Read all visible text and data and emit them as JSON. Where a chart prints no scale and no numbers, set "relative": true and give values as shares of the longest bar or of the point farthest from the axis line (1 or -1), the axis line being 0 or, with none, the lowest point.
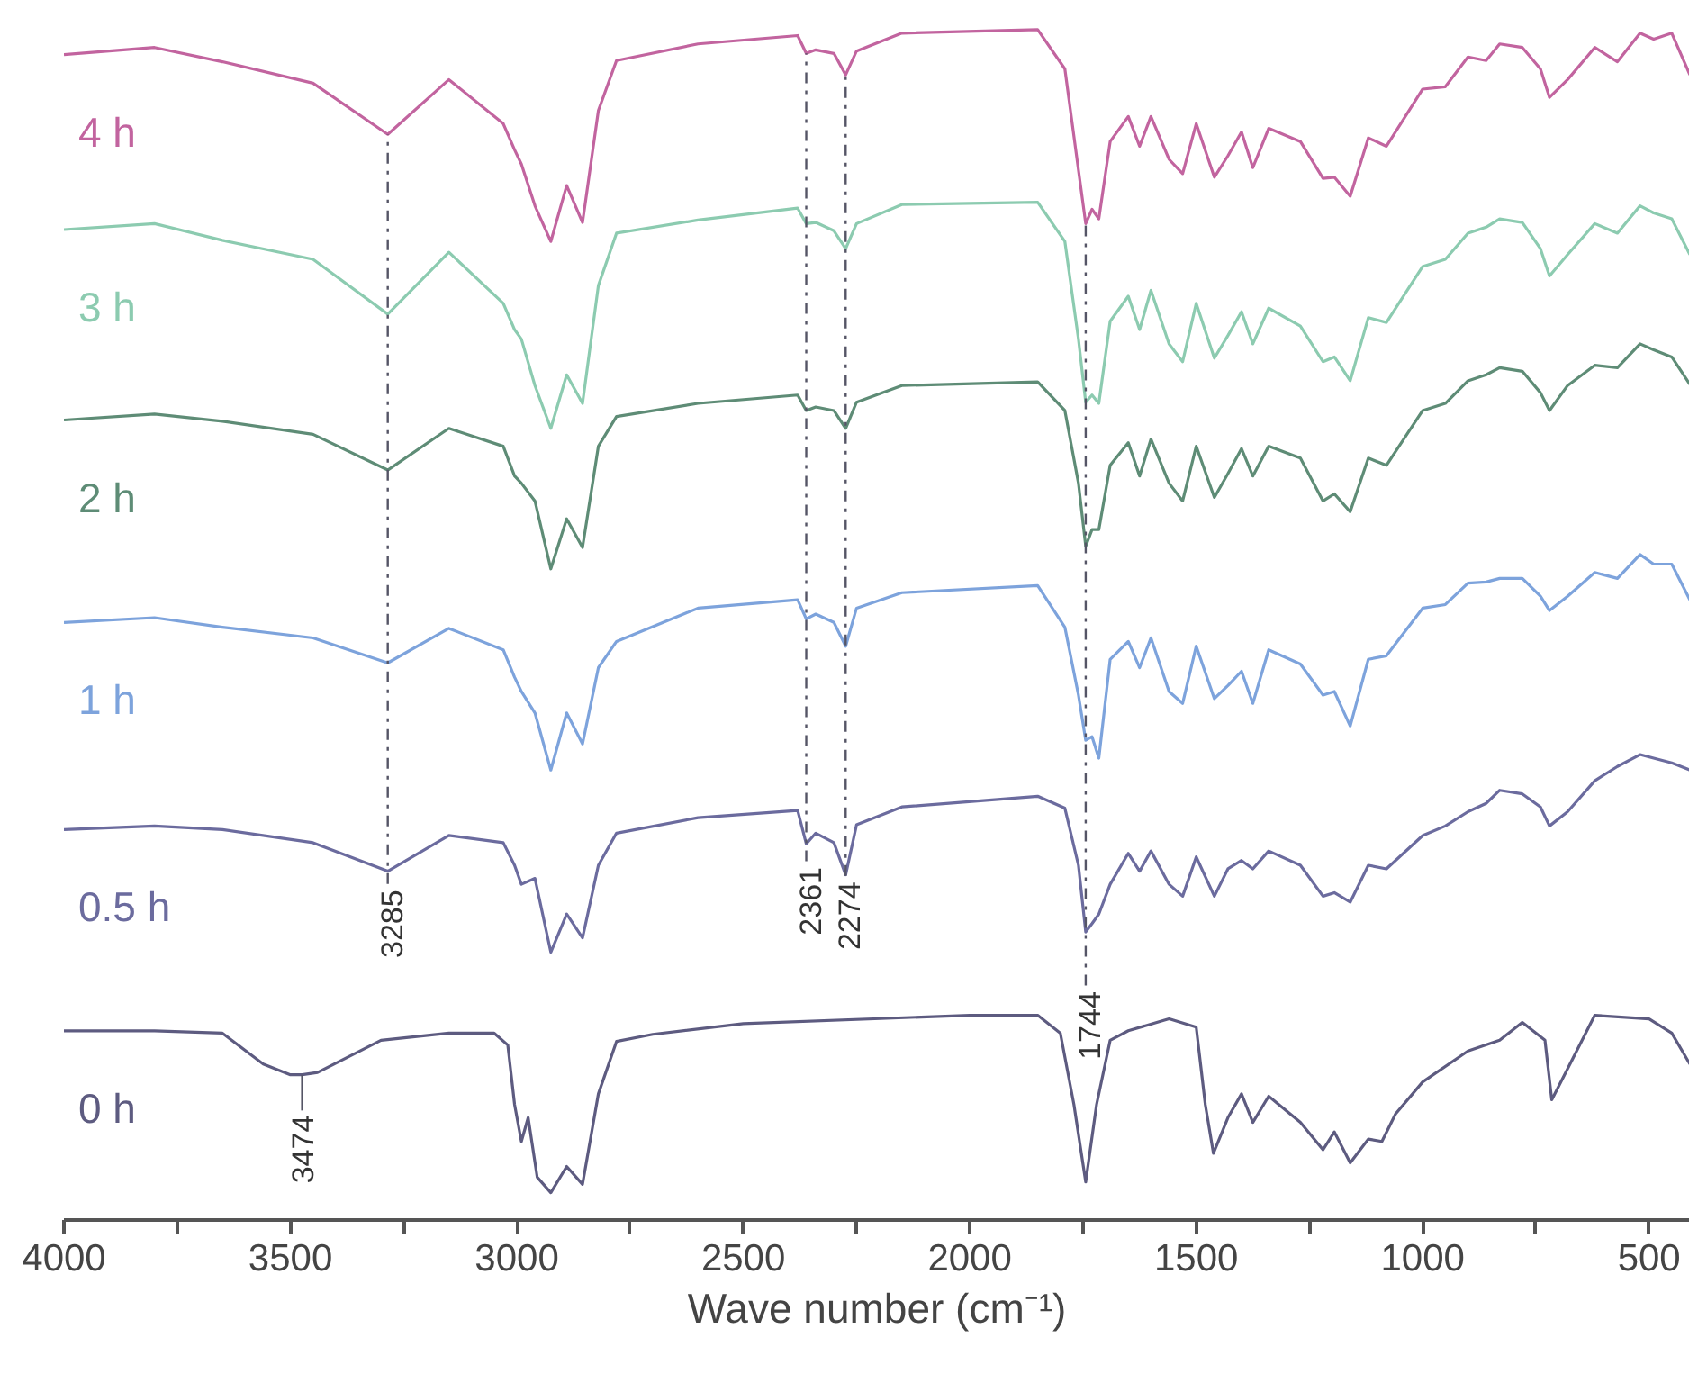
{
  "chart_data": {
    "type": "line",
    "relative": true,
    "xlabel": "Wave number (cm⁻¹)",
    "grid": false,
    "legend": false,
    "marker": "none",
    "line_style": "solid",
    "xlim": [
      4000,
      410
    ],
    "xticks": [
      4000,
      {
        "value": 3750,
        "label": null
      },
      3500,
      {
        "value": 3250,
        "label": null
      },
      3000,
      {
        "value": 2750,
        "label": null
      },
      2500,
      {
        "value": 2250,
        "label": null
      },
      2000,
      {
        "value": 1750,
        "label": null
      },
      1500,
      {
        "value": 1250,
        "label": null
      },
      1000,
      {
        "value": 750,
        "label": null
      },
      500
    ],
    "x": [
      4000,
      3800,
      3650,
      3450,
      3285,
      3150,
      3030,
      3005,
      2990,
      2960,
      2925,
      2890,
      2855,
      2820,
      2780,
      2600,
      2380,
      2361,
      2340,
      2300,
      2274,
      2250,
      2150,
      1850,
      1790,
      1760,
      1744,
      1730,
      1715,
      1690,
      1650,
      1625,
      1600,
      1560,
      1530,
      1500,
      1460,
      1430,
      1400,
      1375,
      1340,
      1270,
      1220,
      1195,
      1160,
      1120,
      1080,
      1000,
      950,
      900,
      860,
      830,
      780,
      740,
      720,
      680,
      620,
      570,
      520,
      490,
      450,
      410
    ],
    "series": [
      {
        "name": "0 h",
        "color": "#5d5b80",
        "x": [
          4000,
          3800,
          3650,
          3560,
          3500,
          3474,
          3440,
          3300,
          3150,
          3050,
          3020,
          3005,
          2990,
          2975,
          2955,
          2925,
          2890,
          2855,
          2820,
          2780,
          2700,
          2500,
          2000,
          1850,
          1800,
          1770,
          1744,
          1720,
          1690,
          1650,
          1560,
          1500,
          1480,
          1462,
          1430,
          1400,
          1375,
          1340,
          1270,
          1220,
          1195,
          1160,
          1120,
          1090,
          1060,
          1000,
          900,
          830,
          780,
          730,
          715,
          680,
          620,
          500,
          450,
          410
        ],
        "values": [
          0.159,
          0.159,
          0.157,
          0.131,
          0.122,
          0.122,
          0.124,
          0.151,
          0.157,
          0.157,
          0.147,
          0.097,
          0.066,
          0.086,
          0.036,
          0.023,
          0.045,
          0.03,
          0.106,
          0.15,
          0.156,
          0.165,
          0.172,
          0.172,
          0.157,
          0.097,
          0.032,
          0.097,
          0.151,
          0.159,
          0.169,
          0.162,
          0.097,
          0.056,
          0.086,
          0.106,
          0.082,
          0.104,
          0.082,
          0.059,
          0.074,
          0.048,
          0.068,
          0.066,
          0.089,
          0.116,
          0.142,
          0.151,
          0.166,
          0.151,
          0.101,
          0.127,
          0.172,
          0.169,
          0.157,
          0.131
        ]
      },
      {
        "name": "0.5 h",
        "color": "#6b6b9e",
        "values": [
          0.328,
          0.331,
          0.328,
          0.317,
          0.293,
          0.323,
          0.317,
          0.298,
          0.282,
          0.287,
          0.225,
          0.257,
          0.237,
          0.298,
          0.325,
          0.338,
          0.344,
          0.316,
          0.325,
          0.317,
          0.29,
          0.332,
          0.347,
          0.356,
          0.346,
          0.298,
          0.242,
          0.249,
          0.257,
          0.282,
          0.308,
          0.293,
          0.31,
          0.282,
          0.272,
          0.305,
          0.272,
          0.295,
          0.302,
          0.295,
          0.31,
          0.298,
          0.272,
          0.275,
          0.267,
          0.298,
          0.295,
          0.323,
          0.331,
          0.343,
          0.35,
          0.361,
          0.358,
          0.347,
          0.331,
          0.343,
          0.369,
          0.381,
          0.391,
          0.388,
          0.384,
          0.378
        ]
      },
      {
        "name": "1 h",
        "color": "#7da3dc",
        "values": [
          0.502,
          0.506,
          0.498,
          0.489,
          0.468,
          0.497,
          0.479,
          0.456,
          0.444,
          0.426,
          0.378,
          0.426,
          0.4,
          0.464,
          0.486,
          0.514,
          0.521,
          0.505,
          0.509,
          0.502,
          0.482,
          0.514,
          0.527,
          0.533,
          0.498,
          0.441,
          0.403,
          0.406,
          0.388,
          0.471,
          0.486,
          0.464,
          0.489,
          0.444,
          0.434,
          0.482,
          0.438,
          0.449,
          0.461,
          0.434,
          0.479,
          0.467,
          0.441,
          0.444,
          0.415,
          0.471,
          0.474,
          0.514,
          0.517,
          0.535,
          0.536,
          0.539,
          0.539,
          0.524,
          0.512,
          0.524,
          0.544,
          0.539,
          0.559,
          0.551,
          0.551,
          0.521
        ]
      },
      {
        "name": "2 h",
        "color": "#5e8c76",
        "values": [
          0.672,
          0.677,
          0.671,
          0.66,
          0.63,
          0.665,
          0.65,
          0.625,
          0.619,
          0.604,
          0.547,
          0.589,
          0.565,
          0.65,
          0.675,
          0.686,
          0.693,
          0.68,
          0.683,
          0.68,
          0.665,
          0.687,
          0.701,
          0.704,
          0.68,
          0.619,
          0.566,
          0.58,
          0.58,
          0.634,
          0.653,
          0.625,
          0.656,
          0.619,
          0.604,
          0.65,
          0.607,
          0.627,
          0.648,
          0.625,
          0.65,
          0.64,
          0.604,
          0.61,
          0.595,
          0.64,
          0.634,
          0.68,
          0.686,
          0.705,
          0.71,
          0.716,
          0.713,
          0.695,
          0.68,
          0.701,
          0.718,
          0.716,
          0.736,
          0.731,
          0.725,
          0.702
        ]
      },
      {
        "name": "3 h",
        "color": "#8ccbb0",
        "values": [
          0.832,
          0.837,
          0.823,
          0.807,
          0.761,
          0.813,
          0.77,
          0.748,
          0.74,
          0.701,
          0.665,
          0.71,
          0.686,
          0.785,
          0.829,
          0.84,
          0.85,
          0.837,
          0.838,
          0.831,
          0.816,
          0.837,
          0.853,
          0.855,
          0.822,
          0.74,
          0.687,
          0.693,
          0.686,
          0.755,
          0.776,
          0.748,
          0.781,
          0.736,
          0.721,
          0.77,
          0.724,
          0.743,
          0.763,
          0.736,
          0.766,
          0.751,
          0.721,
          0.725,
          0.705,
          0.758,
          0.754,
          0.801,
          0.807,
          0.829,
          0.834,
          0.841,
          0.838,
          0.816,
          0.793,
          0.811,
          0.837,
          0.829,
          0.852,
          0.846,
          0.841,
          0.811
        ]
      },
      {
        "name": "4 h",
        "color": "#c2649f",
        "values": [
          0.979,
          0.985,
          0.973,
          0.955,
          0.912,
          0.958,
          0.921,
          0.899,
          0.887,
          0.852,
          0.822,
          0.869,
          0.838,
          0.932,
          0.974,
          0.988,
          0.995,
          0.98,
          0.983,
          0.98,
          0.962,
          0.982,
          0.997,
          1.0,
          0.967,
          0.882,
          0.837,
          0.849,
          0.841,
          0.906,
          0.927,
          0.902,
          0.927,
          0.891,
          0.879,
          0.921,
          0.876,
          0.894,
          0.914,
          0.884,
          0.917,
          0.906,
          0.875,
          0.876,
          0.86,
          0.909,
          0.902,
          0.95,
          0.952,
          0.977,
          0.974,
          0.988,
          0.985,
          0.967,
          0.943,
          0.958,
          0.985,
          0.973,
          0.997,
          0.992,
          0.997,
          0.962
        ]
      }
    ],
    "ref_lines": [
      {
        "axis": "x",
        "value": 3285,
        "label": "3285",
        "line_style": "dashed"
      },
      {
        "axis": "x",
        "value": 2361,
        "label": "2361",
        "line_style": "dashed"
      },
      {
        "axis": "x",
        "value": 2274,
        "label": "2274",
        "line_style": "dashed"
      },
      {
        "axis": "x",
        "value": 1744,
        "label": "1744",
        "line_style": "dashed"
      }
    ],
    "annotations": [
      {
        "text": "3474",
        "x": 3474,
        "y": 0.122
      }
    ]
  }
}
